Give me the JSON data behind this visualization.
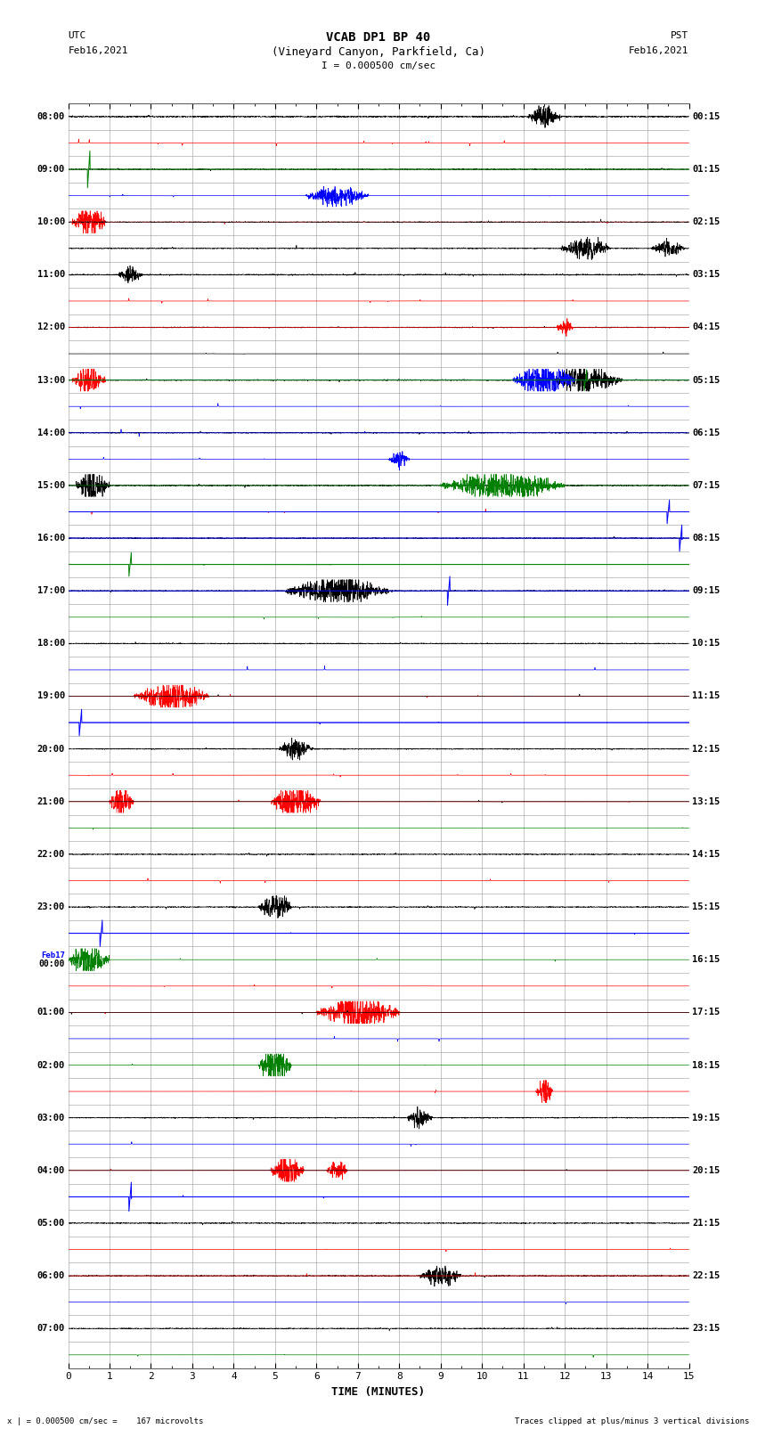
{
  "title_line1": "VCAB DP1 BP 40",
  "title_line2": "(Vineyard Canyon, Parkfield, Ca)",
  "scale_label": "I = 0.000500 cm/sec",
  "left_header1": "UTC",
  "left_header2": "Feb16,2021",
  "right_header1": "PST",
  "right_header2": "Feb16,2021",
  "xlabel": "TIME (MINUTES)",
  "bottom_left": "x | = 0.000500 cm/sec =    167 microvolts",
  "bottom_right": "Traces clipped at plus/minus 3 vertical divisions",
  "xmin": 0,
  "xmax": 15,
  "bg_color": "#ffffff",
  "grid_color": "#999999",
  "figsize": [
    8.5,
    16.13
  ],
  "dpi": 100,
  "num_rows": 48,
  "utc_labels": [
    "08:00",
    "",
    "09:00",
    "",
    "10:00",
    "",
    "11:00",
    "",
    "12:00",
    "",
    "13:00",
    "",
    "14:00",
    "",
    "15:00",
    "",
    "16:00",
    "",
    "17:00",
    "",
    "18:00",
    "",
    "19:00",
    "",
    "20:00",
    "",
    "21:00",
    "",
    "22:00",
    "",
    "23:00",
    "",
    "Feb17\n00:00",
    "",
    "01:00",
    "",
    "02:00",
    "",
    "03:00",
    "",
    "04:00",
    "",
    "05:00",
    "",
    "06:00",
    "",
    "07:00",
    ""
  ],
  "pst_labels": [
    "00:15",
    "",
    "01:15",
    "",
    "02:15",
    "",
    "03:15",
    "",
    "04:15",
    "",
    "05:15",
    "",
    "06:15",
    "",
    "07:15",
    "",
    "08:15",
    "",
    "09:15",
    "",
    "10:15",
    "",
    "11:15",
    "",
    "12:15",
    "",
    "13:15",
    "",
    "14:15",
    "",
    "15:15",
    "",
    "16:15",
    "",
    "17:15",
    "",
    "18:15",
    "",
    "19:15",
    "",
    "20:15",
    "",
    "21:15",
    "",
    "22:15",
    "",
    "23:15",
    ""
  ]
}
